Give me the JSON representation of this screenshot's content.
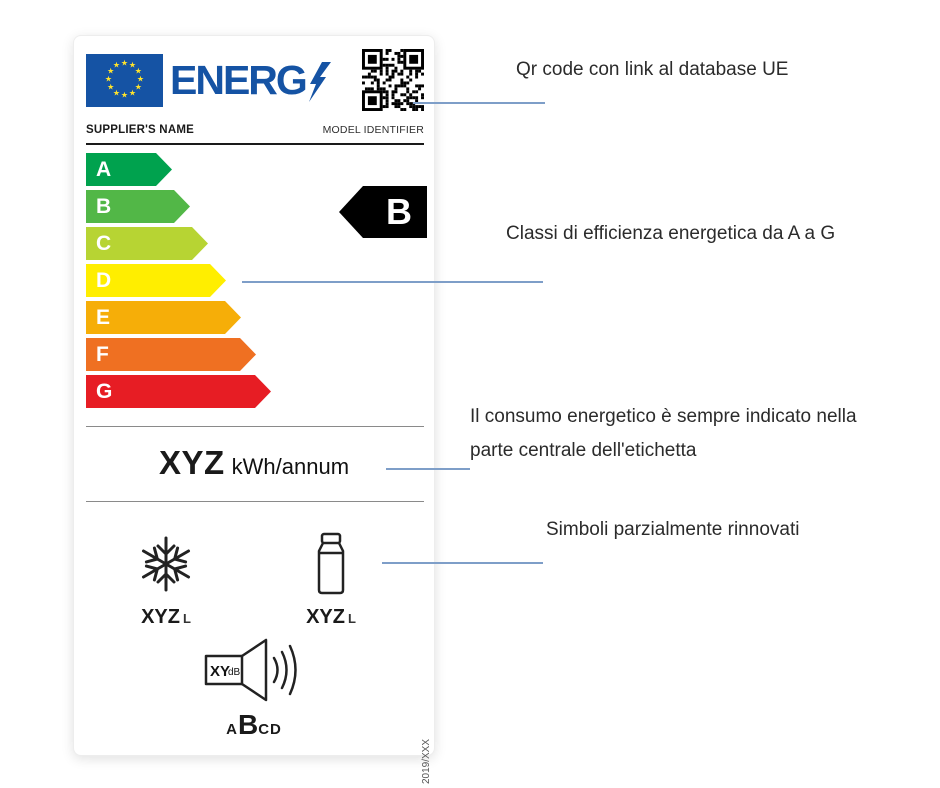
{
  "label": {
    "brand": "ENERG",
    "supplier_name": "SUPPLIER'S NAME",
    "model_identifier": "MODEL IDENTIFIER",
    "energy_classes": [
      {
        "letter": "A",
        "color": "#00A24E"
      },
      {
        "letter": "B",
        "color": "#52B747"
      },
      {
        "letter": "C",
        "color": "#B7D433"
      },
      {
        "letter": "D",
        "color": "#FFEE00"
      },
      {
        "letter": "E",
        "color": "#F6AE08"
      },
      {
        "letter": "F",
        "color": "#EF7022"
      },
      {
        "letter": "G",
        "color": "#E71D24"
      }
    ],
    "rating": "B",
    "consumption_value": "XYZ",
    "consumption_unit": "kWh/annum",
    "freezer_volume": {
      "value": "XYZ",
      "unit": "L"
    },
    "fridge_volume": {
      "value": "XYZ",
      "unit": "L"
    },
    "noise": {
      "value": "XY",
      "unit": "dB",
      "class_prefix": "A",
      "class_letter": "B",
      "class_suffix": "CD"
    },
    "regulation_number": "2019/XXX",
    "colors": {
      "eu_blue": "#1553A4",
      "star_yellow": "#FFE32C"
    }
  },
  "annotations": [
    {
      "text": "Qr code con link al database UE"
    },
    {
      "text": "Classi di efficienza energetica da A a G"
    },
    {
      "text": "Il consumo energetico è sempre indicato nella parte centrale dell'etichetta"
    },
    {
      "text": "Simboli parzialmente rinnovati"
    }
  ],
  "connector_color": "#7E9EC8"
}
